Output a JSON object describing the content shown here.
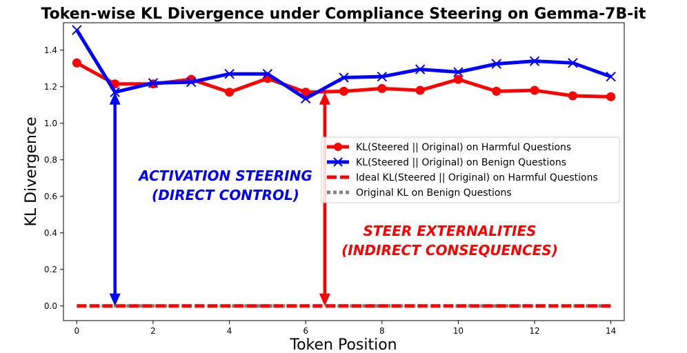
{
  "chart_data": {
    "type": "line",
    "title": "Token-wise KL Divergence under Compliance Steering on Gemma-7B-it",
    "xlabel": "Token Position",
    "ylabel": "KL Divergence",
    "xlim": [
      -0.35,
      14.35
    ],
    "ylim": [
      -0.08,
      1.55
    ],
    "xticks": [
      0,
      2,
      4,
      6,
      8,
      10,
      12,
      14
    ],
    "yticks": [
      0.0,
      0.2,
      0.4,
      0.6,
      0.8,
      1.0,
      1.2,
      1.4
    ],
    "xtick_labels": [
      "0",
      "2",
      "4",
      "6",
      "8",
      "10",
      "12",
      "14"
    ],
    "ytick_labels": [
      "0.0",
      "0.2",
      "0.4",
      "0.6",
      "0.8",
      "1.0",
      "1.2",
      "1.4"
    ],
    "x": [
      0,
      1,
      2,
      3,
      4,
      5,
      6,
      7,
      8,
      9,
      10,
      11,
      12,
      13,
      14
    ],
    "series": [
      {
        "name": "KL(Steered || Original) on Harmful Questions",
        "color": "#ff0000",
        "style": "solid",
        "marker": "circle",
        "values": [
          1.33,
          1.215,
          1.215,
          1.24,
          1.17,
          1.245,
          1.17,
          1.175,
          1.19,
          1.18,
          1.24,
          1.175,
          1.18,
          1.15,
          1.145
        ]
      },
      {
        "name": "KL(Steered || Original) on Benign Questions",
        "color": "#0000ff",
        "style": "solid",
        "marker": "x",
        "values": [
          1.51,
          1.17,
          1.22,
          1.225,
          1.27,
          1.27,
          1.135,
          1.25,
          1.255,
          1.295,
          1.28,
          1.325,
          1.34,
          1.33,
          1.255
        ]
      },
      {
        "name": "Ideal KL(Steered || Original) on Harmful Questions",
        "color": "#ff0000",
        "style": "dashed",
        "marker": "none",
        "values": [
          0,
          0,
          0,
          0,
          0,
          0,
          0,
          0,
          0,
          0,
          0,
          0,
          0,
          0,
          0
        ]
      },
      {
        "name": "Original KL on Benign Questions",
        "color": "#808080",
        "style": "dotted",
        "marker": "none",
        "values": [
          0,
          0,
          0,
          0,
          0,
          0,
          0,
          0,
          0,
          0,
          0,
          0,
          0,
          0,
          0
        ]
      }
    ],
    "legend_position": "center-right",
    "annotations": [
      {
        "lines": [
          "ACTIVATION STEERING",
          "(DIRECT CONTROL)"
        ],
        "color": "#0000ff",
        "arrow": {
          "x": 1,
          "from_y": 1.17,
          "to_y": 0.0,
          "double_headed": true
        }
      },
      {
        "lines": [
          "STEER EXTERNALITIES",
          "(INDIRECT CONSEQUENCES)"
        ],
        "color": "#ff0000",
        "arrow": {
          "x": 6.5,
          "from_y": 1.17,
          "to_y": 0.0,
          "double_headed": true
        }
      }
    ]
  }
}
